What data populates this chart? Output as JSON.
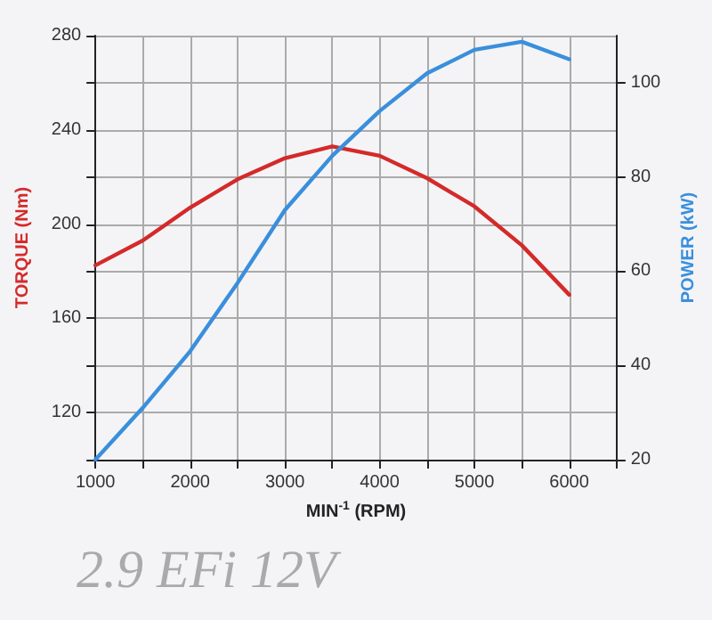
{
  "chart_data": {
    "type": "line",
    "title": "2.9 EFi 12V",
    "xlabel": "MIN$^{-1}$ (RPM)",
    "ylabel": "TORQUE (Nm)",
    "y2label": "POWER (kW)",
    "x": [
      1000,
      1500,
      2000,
      2500,
      3000,
      3500,
      4000,
      4500,
      5000,
      5500,
      6000
    ],
    "series": [
      {
        "color": "#d42a2a",
        "values": [
          182.5,
          193,
          207,
          219,
          228,
          233,
          229,
          219.5,
          207.5,
          191,
          170
        ]
      },
      {
        "color": "#3a8fdc",
        "axis": "y2",
        "values": [
          20,
          31,
          43,
          57.5,
          73,
          84.5,
          94,
          102,
          107,
          108.7,
          105
        ]
      }
    ],
    "xlim": [
      1000,
      6500
    ],
    "xticks": [
      1000,
      {
        "value": 1500,
        "label": null
      },
      2000,
      {
        "value": 2500,
        "label": null
      },
      3000,
      {
        "value": 3500,
        "label": null
      },
      4000,
      {
        "value": 4500,
        "label": null
      },
      5000,
      {
        "value": 5500,
        "label": null
      },
      6000,
      {
        "value": 6500,
        "label": null
      }
    ],
    "ylim": [
      100,
      280
    ],
    "yticks": [
      {
        "value": 100,
        "label": null
      },
      120,
      {
        "value": 140,
        "label": null
      },
      160,
      {
        "value": 180,
        "label": null
      },
      200,
      {
        "value": 220,
        "label": null
      },
      240,
      {
        "value": 260,
        "label": null
      },
      280
    ],
    "y2lim": [
      20,
      110
    ],
    "y2ticks": [
      20,
      40,
      60,
      80,
      100
    ],
    "grid": true,
    "marker": "none",
    "line_style": "solid"
  }
}
